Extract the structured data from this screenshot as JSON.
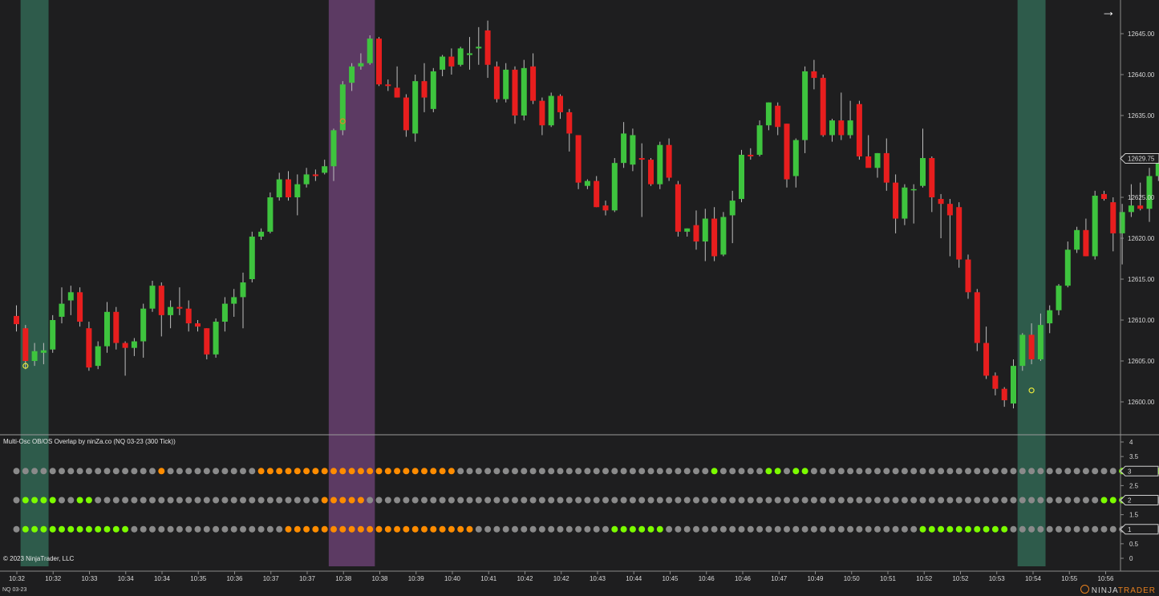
{
  "instrument": "NQ 03-23",
  "indicator_title": "Multi-Osc OB/OS Overlap by ninZa.co (NQ 03-23 (300 Tick))",
  "copyright": "© 2023 NinjaTrader, LLC",
  "brand": {
    "part1": "NINJA",
    "part2": "TRADER"
  },
  "colors": {
    "background": "#1e1e1f",
    "up_candle": "#3ec43e",
    "down_candle": "#e81e1e",
    "wick": "#bdbdbd",
    "dot_gray": "#8a8a8a",
    "dot_green": "#7cfc00",
    "dot_orange": "#ff8c00",
    "band_green": "#2e5b4b",
    "band_purple": "#5c3a63",
    "signal_circle_yellow": "#e6e63c",
    "signal_circle_orange": "#e87f2e"
  },
  "price_axis": {
    "labels": [
      "12645.00",
      "12640.00",
      "12635.00",
      "12630.00",
      "12625.00",
      "12620.00",
      "12615.00",
      "12610.00",
      "12605.00",
      "12600.00"
    ],
    "current_price": "12629.75"
  },
  "oscillator_axis": {
    "labels": [
      "4",
      "3.5",
      "3",
      "2.5",
      "2",
      "1.5",
      "1",
      "0.5",
      "0"
    ],
    "markers": [
      "3",
      "2",
      "1"
    ]
  },
  "time_axis": {
    "labels": [
      "10:32",
      "10:32",
      "10:33",
      "10:34",
      "10:34",
      "10:35",
      "10:36",
      "10:37",
      "10:37",
      "10:38",
      "10:38",
      "10:39",
      "10:40",
      "10:41",
      "10:42",
      "10:42",
      "10:43",
      "10:44",
      "10:45",
      "10:46",
      "10:46",
      "10:47",
      "10:49",
      "10:50",
      "10:51",
      "10:52",
      "10:52",
      "10:53",
      "10:54",
      "10:55",
      "10:56"
    ]
  },
  "chart_data": {
    "type": "candlestick",
    "instrument": "NQ 03-23",
    "bar_type": "300 Tick",
    "ylim": [
      12597,
      12648
    ],
    "candles": [
      {
        "o": 12610.5,
        "h": 12611.8,
        "l": 12608.6,
        "c": 12609.5
      },
      {
        "o": 12609.0,
        "h": 12609.4,
        "l": 12604.0,
        "c": 12605.0
      },
      {
        "o": 12605.0,
        "h": 12607.2,
        "l": 12604.4,
        "c": 12606.2
      },
      {
        "o": 12606.0,
        "h": 12607.2,
        "l": 12604.6,
        "c": 12606.3
      },
      {
        "o": 12606.4,
        "h": 12610.6,
        "l": 12606.0,
        "c": 12610.0
      },
      {
        "o": 12610.4,
        "h": 12614.0,
        "l": 12609.6,
        "c": 12612.0
      },
      {
        "o": 12612.4,
        "h": 12614.2,
        "l": 12610.6,
        "c": 12613.4
      },
      {
        "o": 12613.4,
        "h": 12614.0,
        "l": 12609.2,
        "c": 12609.8
      },
      {
        "o": 12609.0,
        "h": 12609.8,
        "l": 12603.8,
        "c": 12604.2
      },
      {
        "o": 12604.4,
        "h": 12607.4,
        "l": 12604.0,
        "c": 12606.8
      },
      {
        "o": 12606.8,
        "h": 12612.2,
        "l": 12606.0,
        "c": 12611.0
      },
      {
        "o": 12611.0,
        "h": 12611.6,
        "l": 12606.4,
        "c": 12607.2
      },
      {
        "o": 12607.2,
        "h": 12607.4,
        "l": 12603.2,
        "c": 12606.6
      },
      {
        "o": 12606.6,
        "h": 12607.8,
        "l": 12605.6,
        "c": 12607.4
      },
      {
        "o": 12607.4,
        "h": 12612.0,
        "l": 12605.4,
        "c": 12611.4
      },
      {
        "o": 12611.4,
        "h": 12614.8,
        "l": 12611.0,
        "c": 12614.2
      },
      {
        "o": 12614.2,
        "h": 12614.6,
        "l": 12608.0,
        "c": 12610.6
      },
      {
        "o": 12610.6,
        "h": 12612.4,
        "l": 12609.0,
        "c": 12611.6
      },
      {
        "o": 12611.6,
        "h": 12614.0,
        "l": 12610.6,
        "c": 12611.4
      },
      {
        "o": 12611.4,
        "h": 12612.4,
        "l": 12608.6,
        "c": 12609.6
      },
      {
        "o": 12609.6,
        "h": 12610.0,
        "l": 12608.6,
        "c": 12609.2
      },
      {
        "o": 12609.0,
        "h": 12609.0,
        "l": 12605.2,
        "c": 12605.8
      },
      {
        "o": 12605.8,
        "h": 12610.2,
        "l": 12605.4,
        "c": 12609.8
      },
      {
        "o": 12609.8,
        "h": 12612.8,
        "l": 12608.6,
        "c": 12612.0
      },
      {
        "o": 12612.0,
        "h": 12613.8,
        "l": 12610.4,
        "c": 12612.8
      },
      {
        "o": 12612.8,
        "h": 12615.8,
        "l": 12609.0,
        "c": 12614.6
      },
      {
        "o": 12615.0,
        "h": 12620.8,
        "l": 12614.6,
        "c": 12620.2
      },
      {
        "o": 12620.2,
        "h": 12621.2,
        "l": 12619.8,
        "c": 12620.8
      },
      {
        "o": 12620.8,
        "h": 12625.6,
        "l": 12620.6,
        "c": 12625.0
      },
      {
        "o": 12625.0,
        "h": 12628.0,
        "l": 12624.6,
        "c": 12627.2
      },
      {
        "o": 12627.2,
        "h": 12628.2,
        "l": 12624.6,
        "c": 12625.0
      },
      {
        "o": 12625.0,
        "h": 12627.8,
        "l": 12622.8,
        "c": 12626.6
      },
      {
        "o": 12626.6,
        "h": 12628.6,
        "l": 12626.2,
        "c": 12627.8
      },
      {
        "o": 12627.8,
        "h": 12628.4,
        "l": 12627.0,
        "c": 12627.6
      },
      {
        "o": 12628.0,
        "h": 12629.6,
        "l": 12627.8,
        "c": 12628.8
      },
      {
        "o": 12628.8,
        "h": 12633.4,
        "l": 12627.0,
        "c": 12633.2
      },
      {
        "o": 12633.2,
        "h": 12639.2,
        "l": 12632.6,
        "c": 12638.8
      },
      {
        "o": 12639.0,
        "h": 12641.4,
        "l": 12638.0,
        "c": 12641.0
      },
      {
        "o": 12641.0,
        "h": 12642.6,
        "l": 12640.6,
        "c": 12641.4
      },
      {
        "o": 12641.4,
        "h": 12644.8,
        "l": 12641.2,
        "c": 12644.4
      },
      {
        "o": 12644.4,
        "h": 12644.6,
        "l": 12638.6,
        "c": 12638.8
      },
      {
        "o": 12638.8,
        "h": 12639.4,
        "l": 12638.0,
        "c": 12638.6
      },
      {
        "o": 12638.4,
        "h": 12641.0,
        "l": 12637.2,
        "c": 12637.2
      },
      {
        "o": 12637.2,
        "h": 12637.6,
        "l": 12632.4,
        "c": 12633.2
      },
      {
        "o": 12632.8,
        "h": 12640.0,
        "l": 12631.8,
        "c": 12639.2
      },
      {
        "o": 12639.2,
        "h": 12641.4,
        "l": 12635.4,
        "c": 12637.2
      },
      {
        "o": 12635.8,
        "h": 12640.8,
        "l": 12635.4,
        "c": 12640.4
      },
      {
        "o": 12640.6,
        "h": 12642.4,
        "l": 12639.8,
        "c": 12642.2
      },
      {
        "o": 12642.2,
        "h": 12643.2,
        "l": 12640.0,
        "c": 12641.0
      },
      {
        "o": 12641.2,
        "h": 12643.4,
        "l": 12641.0,
        "c": 12643.2
      },
      {
        "o": 12642.4,
        "h": 12644.6,
        "l": 12640.6,
        "c": 12642.6
      },
      {
        "o": 12643.2,
        "h": 12645.8,
        "l": 12641.2,
        "c": 12643.4
      },
      {
        "o": 12645.4,
        "h": 12646.6,
        "l": 12639.6,
        "c": 12641.2
      },
      {
        "o": 12641.0,
        "h": 12641.6,
        "l": 12636.6,
        "c": 12637.0
      },
      {
        "o": 12637.0,
        "h": 12641.4,
        "l": 12636.6,
        "c": 12640.6
      },
      {
        "o": 12640.6,
        "h": 12641.0,
        "l": 12634.0,
        "c": 12635.0
      },
      {
        "o": 12635.0,
        "h": 12641.8,
        "l": 12634.4,
        "c": 12640.8
      },
      {
        "o": 12641.0,
        "h": 12642.6,
        "l": 12636.4,
        "c": 12636.8
      },
      {
        "o": 12636.8,
        "h": 12637.2,
        "l": 12632.6,
        "c": 12633.8
      },
      {
        "o": 12633.8,
        "h": 12637.8,
        "l": 12633.6,
        "c": 12637.4
      },
      {
        "o": 12637.4,
        "h": 12637.6,
        "l": 12634.6,
        "c": 12635.4
      },
      {
        "o": 12635.4,
        "h": 12635.8,
        "l": 12630.6,
        "c": 12632.8
      },
      {
        "o": 12632.6,
        "h": 12632.6,
        "l": 12626.0,
        "c": 12626.8
      },
      {
        "o": 12626.4,
        "h": 12627.2,
        "l": 12626.0,
        "c": 12627.0
      },
      {
        "o": 12627.0,
        "h": 12627.6,
        "l": 12623.8,
        "c": 12623.8
      },
      {
        "o": 12624.0,
        "h": 12624.6,
        "l": 12622.8,
        "c": 12623.4
      },
      {
        "o": 12623.4,
        "h": 12629.8,
        "l": 12623.2,
        "c": 12629.2
      },
      {
        "o": 12629.2,
        "h": 12634.2,
        "l": 12628.6,
        "c": 12632.8
      },
      {
        "o": 12629.0,
        "h": 12633.4,
        "l": 12628.2,
        "c": 12632.6
      },
      {
        "o": 12629.8,
        "h": 12631.6,
        "l": 12622.6,
        "c": 12629.6
      },
      {
        "o": 12629.6,
        "h": 12629.8,
        "l": 12626.4,
        "c": 12626.6
      },
      {
        "o": 12626.6,
        "h": 12631.8,
        "l": 12626.0,
        "c": 12631.4
      },
      {
        "o": 12631.4,
        "h": 12632.2,
        "l": 12627.0,
        "c": 12627.4
      },
      {
        "o": 12626.6,
        "h": 12627.0,
        "l": 12620.2,
        "c": 12620.8
      },
      {
        "o": 12620.8,
        "h": 12621.2,
        "l": 12620.2,
        "c": 12621.2
      },
      {
        "o": 12621.6,
        "h": 12623.4,
        "l": 12618.6,
        "c": 12619.6
      },
      {
        "o": 12619.6,
        "h": 12623.6,
        "l": 12617.2,
        "c": 12622.4
      },
      {
        "o": 12622.4,
        "h": 12623.8,
        "l": 12617.2,
        "c": 12617.8
      },
      {
        "o": 12618.0,
        "h": 12623.2,
        "l": 12617.8,
        "c": 12622.6
      },
      {
        "o": 12622.8,
        "h": 12625.8,
        "l": 12619.4,
        "c": 12624.6
      },
      {
        "o": 12624.8,
        "h": 12630.8,
        "l": 12624.4,
        "c": 12630.2
      },
      {
        "o": 12630.2,
        "h": 12631.0,
        "l": 12629.6,
        "c": 12630.0
      },
      {
        "o": 12630.2,
        "h": 12634.4,
        "l": 12630.0,
        "c": 12633.8
      },
      {
        "o": 12633.8,
        "h": 12636.6,
        "l": 12633.2,
        "c": 12636.6
      },
      {
        "o": 12636.2,
        "h": 12636.6,
        "l": 12632.6,
        "c": 12633.6
      },
      {
        "o": 12634.0,
        "h": 12634.0,
        "l": 12626.2,
        "c": 12627.2
      },
      {
        "o": 12627.6,
        "h": 12632.2,
        "l": 12626.2,
        "c": 12632.0
      },
      {
        "o": 12632.0,
        "h": 12641.0,
        "l": 12630.4,
        "c": 12640.4
      },
      {
        "o": 12640.4,
        "h": 12641.8,
        "l": 12638.2,
        "c": 12639.6
      },
      {
        "o": 12639.6,
        "h": 12640.0,
        "l": 12632.4,
        "c": 12632.6
      },
      {
        "o": 12632.6,
        "h": 12634.6,
        "l": 12631.8,
        "c": 12634.4
      },
      {
        "o": 12634.4,
        "h": 12637.8,
        "l": 12632.0,
        "c": 12632.6
      },
      {
        "o": 12632.6,
        "h": 12636.8,
        "l": 12632.2,
        "c": 12634.4
      },
      {
        "o": 12636.4,
        "h": 12636.8,
        "l": 12629.6,
        "c": 12630.0
      },
      {
        "o": 12630.0,
        "h": 12632.6,
        "l": 12629.0,
        "c": 12628.6
      },
      {
        "o": 12628.6,
        "h": 12630.4,
        "l": 12627.4,
        "c": 12630.4
      },
      {
        "o": 12630.4,
        "h": 12632.2,
        "l": 12625.8,
        "c": 12626.8
      },
      {
        "o": 12626.8,
        "h": 12627.8,
        "l": 12620.6,
        "c": 12622.4
      },
      {
        "o": 12622.4,
        "h": 12626.6,
        "l": 12621.6,
        "c": 12626.2
      },
      {
        "o": 12626.0,
        "h": 12626.6,
        "l": 12621.8,
        "c": 12626.0
      },
      {
        "o": 12626.4,
        "h": 12633.4,
        "l": 12626.2,
        "c": 12629.8
      },
      {
        "o": 12629.8,
        "h": 12630.0,
        "l": 12623.2,
        "c": 12625.0
      },
      {
        "o": 12624.8,
        "h": 12625.4,
        "l": 12620.0,
        "c": 12624.2
      },
      {
        "o": 12624.2,
        "h": 12624.8,
        "l": 12617.8,
        "c": 12622.8
      },
      {
        "o": 12623.8,
        "h": 12624.4,
        "l": 12616.4,
        "c": 12617.4
      },
      {
        "o": 12617.4,
        "h": 12618.0,
        "l": 12612.6,
        "c": 12613.4
      },
      {
        "o": 12613.4,
        "h": 12613.8,
        "l": 12606.2,
        "c": 12607.2
      },
      {
        "o": 12607.2,
        "h": 12609.2,
        "l": 12602.8,
        "c": 12603.2
      },
      {
        "o": 12603.2,
        "h": 12603.6,
        "l": 12600.8,
        "c": 12601.6
      },
      {
        "o": 12601.6,
        "h": 12601.8,
        "l": 12599.4,
        "c": 12600.2
      },
      {
        "o": 12599.8,
        "h": 12605.2,
        "l": 12599.2,
        "c": 12604.4
      },
      {
        "o": 12604.4,
        "h": 12608.4,
        "l": 12603.8,
        "c": 12608.2
      },
      {
        "o": 12608.2,
        "h": 12609.6,
        "l": 12604.6,
        "c": 12605.2
      },
      {
        "o": 12605.2,
        "h": 12610.8,
        "l": 12605.0,
        "c": 12609.4
      },
      {
        "o": 12609.6,
        "h": 12611.8,
        "l": 12608.4,
        "c": 12611.2
      },
      {
        "o": 12611.2,
        "h": 12614.4,
        "l": 12610.6,
        "c": 12614.2
      },
      {
        "o": 12614.2,
        "h": 12619.6,
        "l": 12614.0,
        "c": 12618.6
      },
      {
        "o": 12618.6,
        "h": 12621.4,
        "l": 12618.2,
        "c": 12621.0
      },
      {
        "o": 12621.0,
        "h": 12622.4,
        "l": 12617.8,
        "c": 12617.8
      },
      {
        "o": 12617.8,
        "h": 12625.8,
        "l": 12617.4,
        "c": 12625.2
      },
      {
        "o": 12625.4,
        "h": 12625.8,
        "l": 12624.6,
        "c": 12624.8
      },
      {
        "o": 12624.4,
        "h": 12625.0,
        "l": 12618.4,
        "c": 12620.6
      },
      {
        "o": 12620.6,
        "h": 12624.2,
        "l": 12616.8,
        "c": 12623.2
      },
      {
        "o": 12623.2,
        "h": 12626.6,
        "l": 12622.6,
        "c": 12624.0
      },
      {
        "o": 12624.0,
        "h": 12626.8,
        "l": 12623.4,
        "c": 12623.6
      },
      {
        "o": 12623.6,
        "h": 12628.6,
        "l": 12622.0,
        "c": 12627.6
      },
      {
        "o": 12627.6,
        "h": 12630.2,
        "l": 12627.0,
        "c": 12630.0
      }
    ],
    "signals": [
      {
        "bar": 1,
        "price": 12604.4,
        "color": "yellow",
        "position": "below"
      },
      {
        "bar": 36,
        "price": 12634.3,
        "color": "orange",
        "position": "above"
      },
      {
        "bar": 112,
        "price": 12601.4,
        "color": "yellow",
        "position": "below"
      }
    ],
    "highlight_bands": [
      {
        "from_bar": 1,
        "to_bar": 3,
        "color": "green"
      },
      {
        "from_bar": 35,
        "to_bar": 39,
        "color": "purple"
      },
      {
        "from_bar": 111,
        "to_bar": 113,
        "color": "green"
      }
    ],
    "oscillator_panel": {
      "title": "Multi-Osc OB/OS Overlap by ninZa.co (NQ 03-23 (300 Tick))",
      "ylim": [
        0,
        4
      ],
      "rows": [
        {
          "level": 3,
          "states": "GGGGGGGGGGGGGGGGOGGGGGGGGGGOOOOOOOOOOOOOOOOOOOOOOGGGGGGGGGGGGGGGGGGGGGGGGGGGGLGGGGGLLGLLGGGGGGGGGGGGGGGGGGGGGGGGGGGGGGGGGGLLLLLLGGGGGGGGGGGGOGO"
        },
        {
          "level": 2,
          "states": "GLLLLGGLLGGGGGGGGGGGGGGGGGGGGGGGGGOOOOOGGGGGGGGGGGGGGGGGGGGGGGGGGGGGGGGGGGGGGGGGGGGGGGGGGGGGGGGGGGGGGGGGGGGGGGGGGGGGGGGGLLLGGGGGGGGGGGGGGGGGGGG"
        },
        {
          "level": 1,
          "states": "GLLLLLLLLLLLLGGGGGGGGGGGGGGGGGOOOOOOOOOOOOOOOOOOOOOGGGGGGGGGGGGGGGLLLLLLGGGGGGGGGGGGGGGGGGGGGGGGGGGGLLLLLLLLLLGGGGGGGGGGGGGGGGGGGGGGGGGGGOO"
        }
      ]
    }
  }
}
